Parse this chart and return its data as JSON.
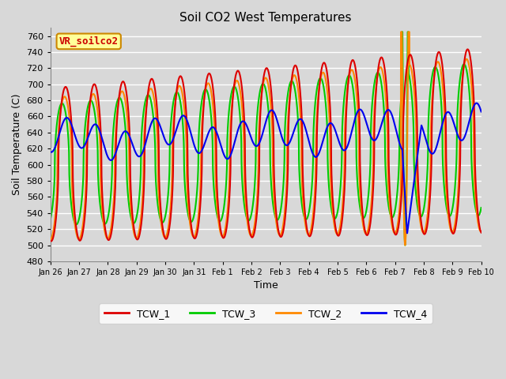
{
  "title": "Soil CO2 West Temperatures",
  "xlabel": "Time",
  "ylabel": "Soil Temperature (C)",
  "ylim": [
    480,
    770
  ],
  "yticks": [
    480,
    500,
    520,
    540,
    560,
    580,
    600,
    620,
    640,
    660,
    680,
    700,
    720,
    740,
    760
  ],
  "bg_color": "#d8d8d8",
  "plot_bg_color": "#d8d8d8",
  "grid_color": "#ffffff",
  "legend_label": "VR_soilco2",
  "series_colors": {
    "TCW_1": "#dd0000",
    "TCW_2": "#ff8800",
    "TCW_3": "#00cc00",
    "TCW_4": "#0000ee"
  },
  "tick_labels": [
    "Jan 26",
    "Jan 27",
    "Jan 28",
    "Jan 29",
    "Jan 30",
    "Jan 31",
    "Feb 1",
    "Feb 2",
    "Feb 3",
    "Feb 4",
    "Feb 5",
    "Feb 6",
    "Feb 7",
    "Feb 8",
    "Feb 9",
    "Feb 10"
  ]
}
